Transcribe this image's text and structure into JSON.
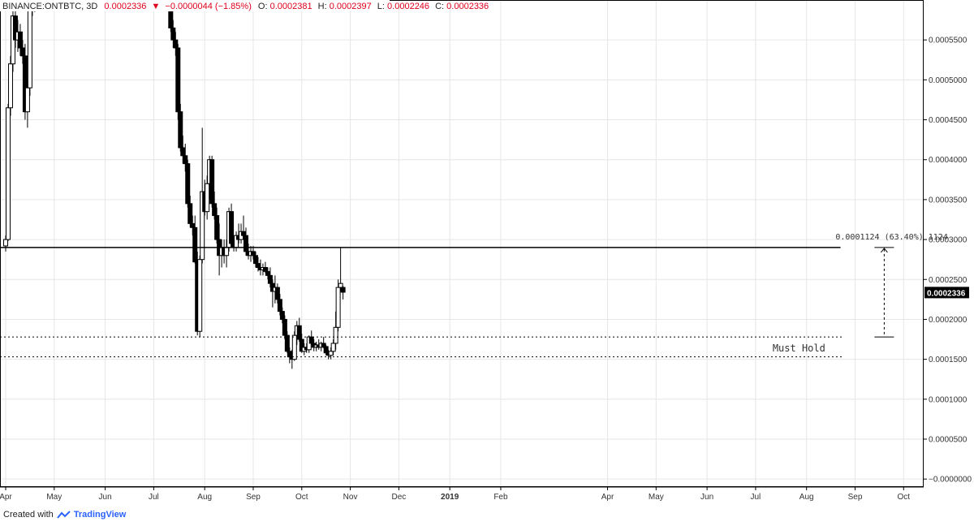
{
  "header": {
    "symbol": "BINANCE:ONTBTC, 3D",
    "last": "0.0002336",
    "change": "−0.0000044 (−1.85%)",
    "open_label": "O:",
    "open": "0.0002381",
    "high_label": "H:",
    "high": "0.0002397",
    "low_label": "L:",
    "low": "0.0002246",
    "close_label": "C:",
    "close": "0.0002336"
  },
  "footer": {
    "created_with": "Created with",
    "brand": "TradingView"
  },
  "colors": {
    "up": "#ffffff",
    "down": "#000000",
    "wick": "#000000",
    "price_tag_bg": "#000000",
    "text_red": "#e0001b",
    "grid": "#e6e6e6"
  },
  "chart_data": {
    "type": "candlestick",
    "title": "",
    "ylim": [
      -1e-05,
      0.0006
    ],
    "y_ticks": [
      "0.0005500",
      "0.0005000",
      "0.0004500",
      "0.0004000",
      "0.0003500",
      "0.0003000",
      "0.0002500",
      "0.0002000",
      "0.0001500",
      "0.0001000",
      "0.0000500",
      "−0.0000000"
    ],
    "y_tick_values": [
      0.00055,
      0.0005,
      0.00045,
      0.0004,
      0.00035,
      0.0003,
      0.00025,
      0.0002,
      0.00015,
      0.0001,
      5e-05,
      0
    ],
    "x_ticks": [
      "Apr",
      "May",
      "Jun",
      "Jul",
      "Aug",
      "Sep",
      "Oct",
      "Nov",
      "Dec",
      "2019",
      "Feb",
      "Apr",
      "May",
      "Jun",
      "Jul",
      "Aug",
      "Sep",
      "Oct"
    ],
    "x_tick_bars": [
      0,
      20,
      41,
      61,
      82,
      102,
      122,
      142,
      162,
      183,
      204,
      248,
      268,
      289,
      309,
      330,
      350,
      370
    ],
    "bar_start": 0,
    "ohlc": [
      [
        0.000292,
        0.000305,
        0.000285,
        0.0003
      ],
      [
        0.0003,
        0.00047,
        0.000298,
        0.000465
      ],
      [
        0.000465,
        0.00053,
        0.000455,
        0.00052
      ],
      [
        0.00052,
        0.00059,
        0.00051,
        0.00058
      ],
      [
        0.00058,
        0.0006,
        0.00054,
        0.00055
      ],
      [
        0.00055,
        0.000575,
        0.000535,
        0.00056
      ],
      [
        0.00056,
        0.00057,
        0.00053,
        0.00054
      ],
      [
        0.00054,
        0.00055,
        0.00052,
        0.00053
      ],
      [
        0.00053,
        0.000545,
        0.00045,
        0.00046
      ],
      [
        0.00046,
        0.0005,
        0.00044,
        0.00049
      ],
      [
        0.00049,
        0.0006,
        0.00048,
        0.00059
      ],
      [
        0.00059,
        0.0006,
        0.00058,
        0.000595
      ],
      [
        0.000595,
        0.0006,
        0.000585,
        0.000598
      ],
      null,
      null,
      null,
      null,
      null,
      null,
      null,
      null,
      null,
      null,
      null,
      null,
      null,
      null,
      null,
      null,
      null,
      null,
      null,
      null,
      null,
      null,
      null,
      null,
      null,
      null,
      null,
      null,
      null,
      null,
      null,
      null,
      null,
      null,
      null,
      null,
      null,
      null,
      null,
      null,
      null,
      null,
      null,
      null,
      null,
      null,
      null,
      null,
      null,
      null,
      null,
      null,
      null,
      null,
      null,
      [
        0.0006,
        0.0006,
        0.00056,
        0.000565
      ],
      [
        0.000565,
        0.000575,
        0.00054,
        0.00055
      ],
      [
        0.00055,
        0.00056,
        0.00053,
        0.00054
      ],
      [
        0.00054,
        0.000545,
        0.00045,
        0.00046
      ],
      [
        0.00046,
        0.00047,
        0.00041,
        0.000415
      ],
      [
        0.000415,
        0.00043,
        0.000395,
        0.000405
      ],
      [
        0.000405,
        0.00042,
        0.000385,
        0.000395
      ],
      [
        0.000395,
        0.0004,
        0.00034,
        0.000345
      ],
      [
        0.000345,
        0.000355,
        0.000315,
        0.00032
      ],
      [
        0.00032,
        0.00033,
        0.000305,
        0.000315
      ],
      [
        0.000315,
        0.00033,
        0.00027,
        0.000272
      ],
      [
        0.000272,
        0.000285,
        0.00018,
        0.000185
      ],
      [
        0.000185,
        0.00028,
        0.000178,
        0.000275
      ],
      [
        0.000275,
        0.00044,
        0.00027,
        0.00036
      ],
      [
        0.00036,
        0.000375,
        0.00033,
        0.000335
      ],
      [
        0.000335,
        0.00038,
        0.000325,
        0.00037
      ],
      [
        0.00037,
        0.000405,
        0.00035,
        0.0004
      ],
      [
        0.0004,
        0.000405,
        0.00034,
        0.000345
      ],
      [
        0.000345,
        0.00036,
        0.000325,
        0.00033
      ],
      [
        0.00033,
        0.00034,
        0.000295,
        0.0003
      ],
      [
        0.0003,
        0.00032,
        0.000255,
        0.00028
      ],
      [
        0.00028,
        0.0003,
        0.000265,
        0.00029
      ],
      [
        0.00029,
        0.0003,
        0.00027,
        0.00028
      ],
      [
        0.00028,
        0.0003,
        0.000265,
        0.00029
      ],
      [
        0.00029,
        0.00034,
        0.000285,
        0.000335
      ],
      [
        0.000335,
        0.000345,
        0.00029,
        0.000295
      ],
      [
        0.000295,
        0.0003,
        0.000285,
        0.00029
      ],
      [
        0.00029,
        0.00031,
        0.000285,
        0.000305
      ],
      [
        0.000305,
        0.00032,
        0.000295,
        0.0003
      ],
      [
        0.0003,
        0.00032,
        0.000295,
        0.00031
      ],
      [
        0.00031,
        0.00033,
        0.0003,
        0.000305
      ],
      [
        0.000305,
        0.000315,
        0.00028,
        0.000285
      ],
      [
        0.000285,
        0.000295,
        0.000275,
        0.00028
      ],
      [
        0.00028,
        0.000292,
        0.000272,
        0.000285
      ],
      [
        0.000285,
        0.000292,
        0.000275,
        0.00028
      ],
      [
        0.00028,
        0.000285,
        0.000265,
        0.00027
      ],
      [
        0.00027,
        0.000278,
        0.00026,
        0.000265
      ],
      [
        0.000265,
        0.000275,
        0.000255,
        0.000262
      ],
      [
        0.000262,
        0.00027,
        0.000255,
        0.000265
      ],
      [
        0.000265,
        0.000272,
        0.000258,
        0.00026
      ],
      [
        0.00026,
        0.000265,
        0.00025,
        0.000255
      ],
      [
        0.000255,
        0.000265,
        0.00024,
        0.000245
      ],
      [
        0.000245,
        0.00025,
        0.000215,
        0.000235
      ],
      [
        0.000235,
        0.000255,
        0.00022,
        0.00024
      ],
      [
        0.00024,
        0.000245,
        0.00022,
        0.000225
      ],
      [
        0.000225,
        0.000232,
        0.000205,
        0.00021
      ],
      [
        0.00021,
        0.000215,
        0.000195,
        0.0002
      ],
      [
        0.0002,
        0.000205,
        0.000175,
        0.00018
      ],
      [
        0.00018,
        0.000185,
        0.000158,
        0.00016
      ],
      [
        0.00016,
        0.000165,
        0.000145,
        0.000153
      ],
      [
        0.000153,
        0.000162,
        0.000138,
        0.00015
      ],
      [
        0.00015,
        0.000185,
        0.000148,
        0.00018
      ],
      [
        0.00018,
        0.000198,
        0.000168,
        0.000192
      ],
      [
        0.000192,
        0.000202,
        0.000172,
        0.000175
      ],
      [
        0.000175,
        0.000182,
        0.000158,
        0.00016
      ],
      [
        0.00016,
        0.00017,
        0.000155,
        0.000165
      ],
      [
        0.000165,
        0.00017,
        0.000158,
        0.000162
      ],
      [
        0.000162,
        0.00018,
        0.000158,
        0.000178
      ],
      [
        0.000178,
        0.000186,
        0.000168,
        0.00017
      ],
      [
        0.00017,
        0.000175,
        0.00016,
        0.000165
      ],
      [
        0.000165,
        0.000172,
        0.00016,
        0.000168
      ],
      [
        0.000168,
        0.000175,
        0.000162,
        0.000165
      ],
      [
        0.000165,
        0.000172,
        0.00016,
        0.00017
      ],
      [
        0.00017,
        0.000178,
        0.000164,
        0.000166
      ],
      [
        0.000166,
        0.000168,
        0.000155,
        0.000158
      ],
      [
        0.000158,
        0.000162,
        0.00015,
        0.000155
      ],
      [
        0.000155,
        0.000165,
        0.00015,
        0.00016
      ],
      [
        0.00016,
        0.000175,
        0.000155,
        0.00017
      ],
      [
        0.00017,
        0.00021,
        0.000162,
        0.00019
      ],
      [
        0.00019,
        0.00025,
        0.000185,
        0.00024
      ],
      [
        0.00024,
        0.00029,
        0.000235,
        0.000245
      ],
      [
        0.00024,
        0.000242,
        0.000225,
        0.000234
      ]
    ],
    "levels": [
      {
        "value": 0.00029,
        "style": "solid",
        "end_bar": 344
      },
      {
        "value": 0.000178,
        "style": "dotted",
        "end_bar": 345
      },
      {
        "value": 0.000153,
        "style": "dotted",
        "end_bar": 345
      }
    ],
    "level_label": "Must Hold",
    "level_label_bar": 316,
    "level_label_value": 0.000164,
    "measure": {
      "from": 0.000178,
      "to": 0.00029,
      "bar": 362,
      "label": "0.0001124 (63.40%) 1124"
    },
    "last_price": 0.0002336,
    "last_price_label": "0.0002336"
  }
}
